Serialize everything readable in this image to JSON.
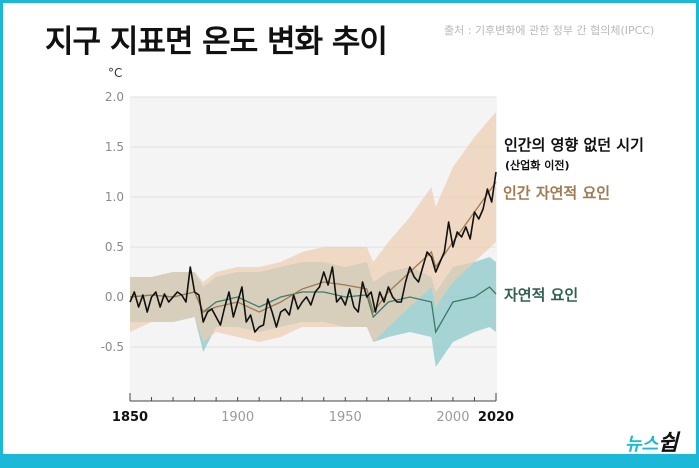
{
  "header": {
    "title": "지구 지표면 온도 변화 추이",
    "source": "출처 : 기후변화에 관한 정부 간 협의체(IPCC)"
  },
  "logo": {
    "part1": "뉴스",
    "part2": "쉽"
  },
  "colors": {
    "border": "#1bb8d8",
    "plot_bg": "#f4f4f4",
    "observed": "#111111",
    "human_natural_line": "#a07a50",
    "human_natural_band": "#eccdb0",
    "natural_line": "#3f7a68",
    "natural_band": "#8ccaca"
  },
  "chart_data": {
    "type": "line",
    "title": "지구 지표면 온도 변화 추이",
    "xlabel": "",
    "ylabel": "°C",
    "xlim": [
      1850,
      2020
    ],
    "ylim": [
      -1.0,
      2.0
    ],
    "x_ticks": [
      1850,
      1900,
      1950,
      2000,
      2020
    ],
    "x_tick_labels": [
      "1850",
      "1900",
      "1950",
      "2000",
      "2020"
    ],
    "y_ticks": [
      2.0,
      1.5,
      1.0,
      0.5,
      0.0,
      -0.5
    ],
    "y_tick_labels": [
      "2.0",
      "1.5",
      "1.0",
      "0.5",
      "0.0",
      "-0.5"
    ],
    "grid": true,
    "legend_placement": "right",
    "series": [
      {
        "name": "인간의 영향 없던 시기 (산업화 이전) 관측",
        "label": "인간의 영향 없던 시기",
        "sublabel": "(산업화 이전)",
        "kind": "line",
        "x": [
          1850,
          1852,
          1854,
          1856,
          1858,
          1860,
          1862,
          1864,
          1866,
          1868,
          1870,
          1872,
          1874,
          1876,
          1878,
          1880,
          1882,
          1884,
          1886,
          1888,
          1890,
          1892,
          1894,
          1896,
          1898,
          1900,
          1902,
          1904,
          1906,
          1908,
          1910,
          1912,
          1914,
          1916,
          1918,
          1920,
          1922,
          1924,
          1926,
          1928,
          1930,
          1932,
          1934,
          1936,
          1938,
          1940,
          1942,
          1944,
          1946,
          1948,
          1950,
          1952,
          1954,
          1956,
          1958,
          1960,
          1962,
          1964,
          1966,
          1968,
          1970,
          1972,
          1974,
          1976,
          1978,
          1980,
          1982,
          1984,
          1986,
          1988,
          1990,
          1992,
          1994,
          1996,
          1998,
          2000,
          2002,
          2004,
          2006,
          2008,
          2010,
          2012,
          2014,
          2016,
          2018,
          2020
        ],
        "values": [
          -0.05,
          0.05,
          -0.1,
          0.02,
          -0.15,
          0.0,
          0.05,
          -0.1,
          0.03,
          -0.05,
          0.0,
          0.05,
          0.02,
          -0.05,
          0.3,
          0.05,
          0.02,
          -0.25,
          -0.15,
          -0.12,
          -0.2,
          -0.28,
          -0.1,
          0.05,
          -0.2,
          -0.05,
          0.1,
          -0.25,
          -0.18,
          -0.35,
          -0.3,
          -0.28,
          -0.02,
          -0.15,
          -0.3,
          -0.15,
          -0.12,
          -0.18,
          0.02,
          -0.12,
          -0.05,
          0.0,
          -0.08,
          0.05,
          0.1,
          0.25,
          0.12,
          0.3,
          -0.05,
          0.0,
          -0.08,
          0.08,
          -0.1,
          -0.15,
          0.15,
          0.0,
          0.05,
          -0.15,
          0.05,
          -0.05,
          0.1,
          0.0,
          -0.05,
          -0.05,
          0.15,
          0.3,
          0.2,
          0.15,
          0.3,
          0.45,
          0.4,
          0.25,
          0.35,
          0.45,
          0.75,
          0.5,
          0.65,
          0.6,
          0.7,
          0.58,
          0.85,
          0.78,
          0.88,
          1.08,
          0.95,
          1.25
        ]
      },
      {
        "name": "인간 자연적 요인",
        "label": "인간 자연적 요인",
        "kind": "line_with_band",
        "x": [
          1850,
          1860,
          1870,
          1880,
          1884,
          1890,
          1900,
          1910,
          1920,
          1930,
          1940,
          1950,
          1960,
          1963,
          1970,
          1980,
          1990,
          1992,
          2000,
          2010,
          2020
        ],
        "values": [
          0.0,
          0.02,
          0.0,
          0.05,
          -0.15,
          -0.1,
          -0.05,
          -0.15,
          -0.05,
          0.08,
          0.15,
          0.12,
          0.08,
          -0.15,
          0.05,
          0.25,
          0.45,
          0.3,
          0.55,
          0.85,
          1.15
        ],
        "band_upper": [
          0.2,
          0.2,
          0.25,
          0.25,
          0.15,
          0.25,
          0.3,
          0.3,
          0.35,
          0.45,
          0.5,
          0.5,
          0.5,
          0.35,
          0.55,
          0.8,
          1.1,
          0.9,
          1.3,
          1.6,
          1.85
        ],
        "band_lower": [
          -0.35,
          -0.25,
          -0.25,
          -0.2,
          -0.45,
          -0.35,
          -0.4,
          -0.45,
          -0.4,
          -0.3,
          -0.3,
          -0.3,
          -0.3,
          -0.45,
          -0.3,
          -0.1,
          0.1,
          -0.1,
          0.15,
          0.35,
          0.55
        ]
      },
      {
        "name": "자연적 요인",
        "label": "자연적 요인",
        "kind": "line_with_band",
        "x": [
          1850,
          1860,
          1870,
          1880,
          1884,
          1890,
          1900,
          1910,
          1920,
          1930,
          1940,
          1950,
          1960,
          1963,
          1970,
          1980,
          1990,
          1992,
          2000,
          2010,
          2017,
          2020
        ],
        "values": [
          0.0,
          0.02,
          0.0,
          0.05,
          -0.15,
          -0.05,
          0.0,
          -0.1,
          0.0,
          0.05,
          0.05,
          0.0,
          0.02,
          -0.2,
          -0.05,
          0.0,
          -0.05,
          -0.35,
          -0.05,
          0.0,
          0.1,
          0.03
        ],
        "band_upper": [
          0.2,
          0.2,
          0.25,
          0.25,
          0.1,
          0.2,
          0.25,
          0.25,
          0.3,
          0.35,
          0.35,
          0.3,
          0.35,
          0.15,
          0.25,
          0.3,
          0.2,
          0.05,
          0.3,
          0.35,
          0.4,
          0.35
        ],
        "band_lower": [
          -0.25,
          -0.25,
          -0.25,
          -0.2,
          -0.55,
          -0.3,
          -0.3,
          -0.35,
          -0.3,
          -0.25,
          -0.25,
          -0.3,
          -0.3,
          -0.45,
          -0.4,
          -0.35,
          -0.4,
          -0.7,
          -0.45,
          -0.35,
          -0.3,
          -0.35
        ]
      }
    ]
  }
}
